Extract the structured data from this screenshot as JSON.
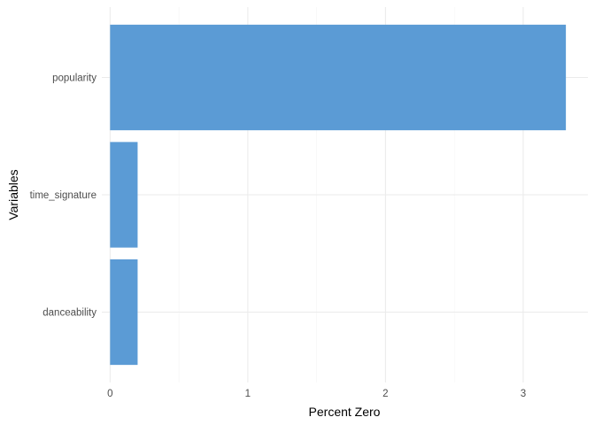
{
  "chart_data": {
    "type": "bar",
    "orientation": "horizontal",
    "categories": [
      "popularity",
      "time_signature",
      "danceability"
    ],
    "values": [
      3.31,
      0.2,
      0.2
    ],
    "xlabel": "Percent Zero",
    "ylabel": "Variables",
    "xlim": [
      -0.06,
      3.47
    ],
    "x_ticks": [
      "0",
      "1",
      "2",
      "3"
    ],
    "grid": true,
    "bar_color": "#5B9BD5"
  }
}
